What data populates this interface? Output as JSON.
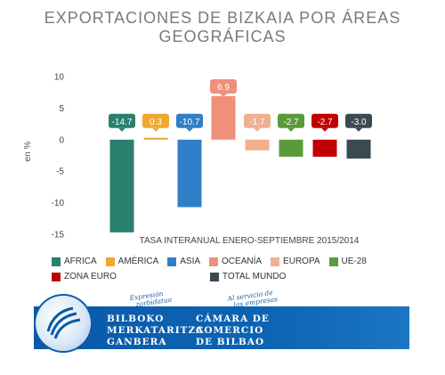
{
  "chart_data": {
    "type": "bar",
    "title_lines": [
      "EXPORTACIONES DE BIZKAIA POR ÁREAS",
      "GEOGRÁFICAS"
    ],
    "ylabel": "en %",
    "subtitle": "TASA INTERANUAL ENERO-SEPTIEMBRE 2015/2014",
    "ylim": [
      -15,
      10
    ],
    "yticks": [
      10,
      5,
      0,
      -5,
      -10,
      -15
    ],
    "grid": false,
    "legend_position": "bottom",
    "categories": [
      "AFRICA",
      "AMÉRICA",
      "ASIA",
      "OCEANÍA",
      "EUROPA",
      "UE-28",
      "ZONA EURO",
      "TOTAL MUNDO"
    ],
    "values": [
      -14.7,
      0.3,
      -10.7,
      6.9,
      -1.7,
      -2.7,
      -2.7,
      -3.0
    ],
    "value_labels": [
      "-14.7",
      "0.3",
      "-10.7",
      "6.9",
      "-1.7",
      "-2.7",
      "-2.7",
      "-3.0"
    ],
    "colors": [
      "#2a7f6f",
      "#f0a830",
      "#2f7fc8",
      "#f0907a",
      "#f0b090",
      "#5a9a3a",
      "#c00000",
      "#3a4a50"
    ]
  },
  "logo": {
    "script_left": [
      "Expresión",
      "zorbidatua"
    ],
    "script_right": [
      "Al servicio de",
      "las empresas"
    ],
    "basque_lines": [
      "BILBOKO",
      "MERKATARITZA",
      "GANBERA"
    ],
    "spanish_lines": [
      "CÁMARA DE",
      "COMERCIO",
      "DE BILBAO"
    ]
  }
}
